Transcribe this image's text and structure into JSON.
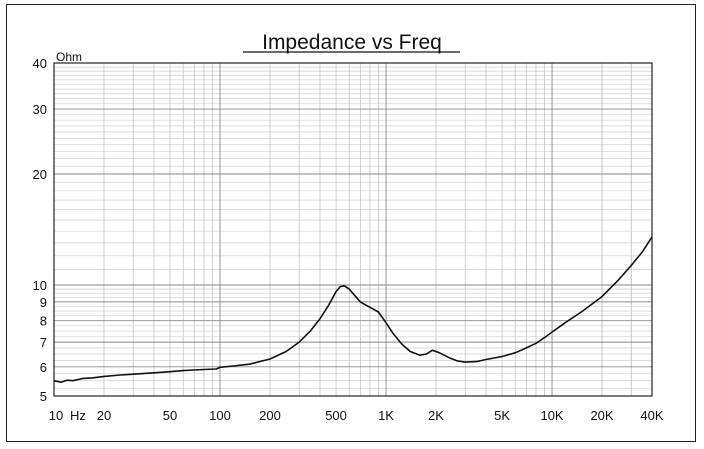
{
  "chart_data": {
    "type": "line",
    "title": "Impedance vs Freq",
    "x_scale": "log",
    "y_scale": "log",
    "xlim": [
      10,
      40000
    ],
    "ylim": [
      5,
      40
    ],
    "y_unit": "Ohm",
    "x_unit": "Hz",
    "grid": true,
    "x_tick_labels": [
      {
        "value": 10,
        "label": "10"
      },
      {
        "value": 20,
        "label": "20"
      },
      {
        "value": 50,
        "label": "50"
      },
      {
        "value": 100,
        "label": "100"
      },
      {
        "value": 200,
        "label": "200"
      },
      {
        "value": 500,
        "label": "500"
      },
      {
        "value": 1000,
        "label": "1K"
      },
      {
        "value": 2000,
        "label": "2K"
      },
      {
        "value": 5000,
        "label": "5K"
      },
      {
        "value": 10000,
        "label": "10K"
      },
      {
        "value": 20000,
        "label": "20K"
      },
      {
        "value": 40000,
        "label": "40K"
      }
    ],
    "y_tick_labels": [
      {
        "value": 5,
        "label": "5"
      },
      {
        "value": 6,
        "label": "6"
      },
      {
        "value": 7,
        "label": "7"
      },
      {
        "value": 8,
        "label": "8"
      },
      {
        "value": 9,
        "label": "9"
      },
      {
        "value": 10,
        "label": "10"
      },
      {
        "value": 20,
        "label": "20"
      },
      {
        "value": 30,
        "label": "30"
      },
      {
        "value": 40,
        "label": "40"
      }
    ],
    "series": [
      {
        "color": "#111111",
        "points": [
          [
            10,
            5.5
          ],
          [
            11,
            5.45
          ],
          [
            12,
            5.52
          ],
          [
            13,
            5.5
          ],
          [
            15,
            5.58
          ],
          [
            17,
            5.6
          ],
          [
            20,
            5.65
          ],
          [
            25,
            5.7
          ],
          [
            30,
            5.73
          ],
          [
            40,
            5.78
          ],
          [
            50,
            5.82
          ],
          [
            60,
            5.86
          ],
          [
            70,
            5.88
          ],
          [
            80,
            5.9
          ],
          [
            95,
            5.92
          ],
          [
            100,
            5.98
          ],
          [
            120,
            6.03
          ],
          [
            150,
            6.1
          ],
          [
            200,
            6.3
          ],
          [
            250,
            6.6
          ],
          [
            300,
            7.0
          ],
          [
            350,
            7.5
          ],
          [
            400,
            8.1
          ],
          [
            450,
            8.8
          ],
          [
            500,
            9.6
          ],
          [
            530,
            9.9
          ],
          [
            560,
            9.95
          ],
          [
            600,
            9.75
          ],
          [
            650,
            9.35
          ],
          [
            700,
            9.0
          ],
          [
            800,
            8.7
          ],
          [
            900,
            8.45
          ],
          [
            1000,
            7.9
          ],
          [
            1100,
            7.4
          ],
          [
            1250,
            6.9
          ],
          [
            1400,
            6.6
          ],
          [
            1600,
            6.45
          ],
          [
            1750,
            6.5
          ],
          [
            1900,
            6.65
          ],
          [
            2100,
            6.55
          ],
          [
            2400,
            6.35
          ],
          [
            2700,
            6.22
          ],
          [
            3000,
            6.18
          ],
          [
            3500,
            6.2
          ],
          [
            4000,
            6.28
          ],
          [
            5000,
            6.4
          ],
          [
            6000,
            6.55
          ],
          [
            7000,
            6.75
          ],
          [
            8000,
            6.95
          ],
          [
            9000,
            7.2
          ],
          [
            10000,
            7.45
          ],
          [
            12000,
            7.9
          ],
          [
            15000,
            8.45
          ],
          [
            20000,
            9.3
          ],
          [
            25000,
            10.3
          ],
          [
            30000,
            11.3
          ],
          [
            35000,
            12.3
          ],
          [
            40000,
            13.5
          ]
        ]
      }
    ]
  }
}
